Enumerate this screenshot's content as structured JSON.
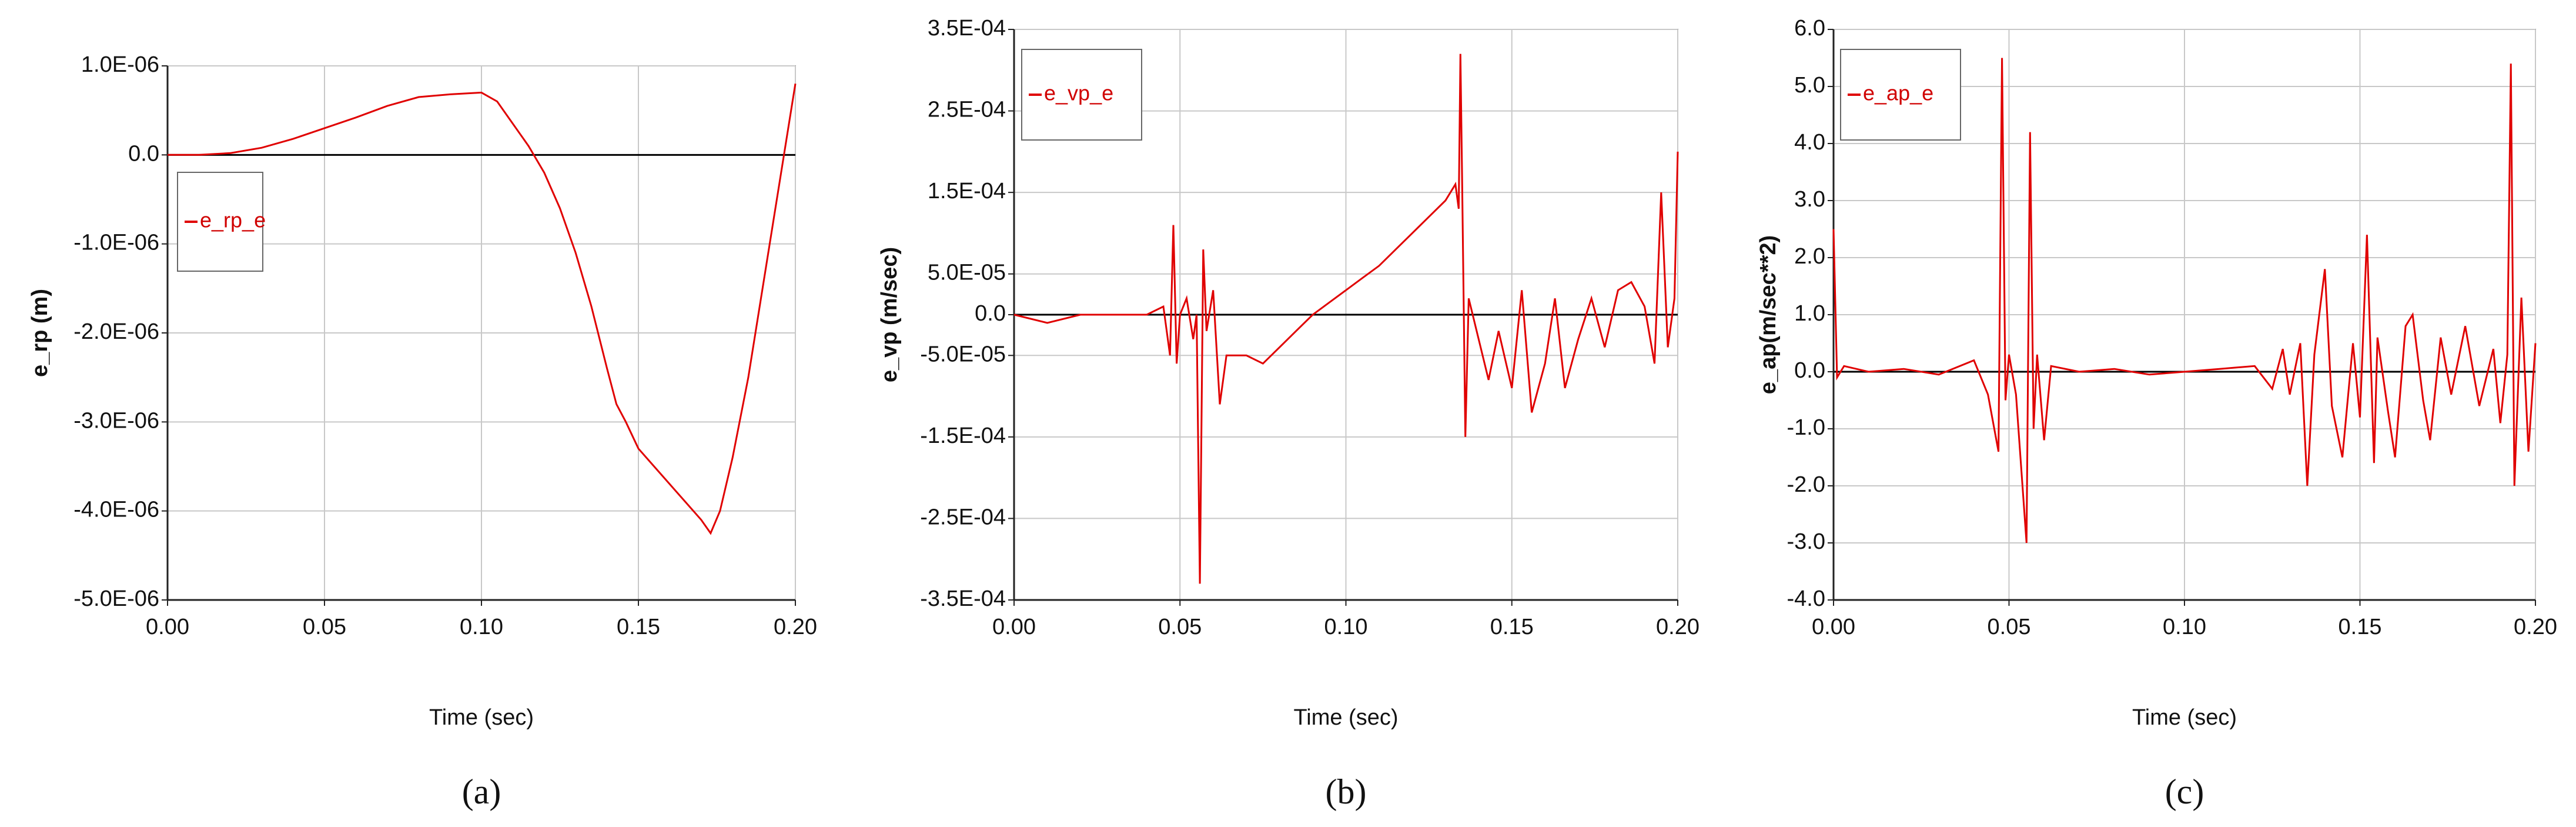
{
  "chart_data": [
    {
      "type": "line",
      "caption": "(a)",
      "x_label": "Time (sec)",
      "y_label": "e_rp (m)",
      "grid": true,
      "xlim": [
        0,
        0.2
      ],
      "ylim": [
        -5e-06,
        1e-06
      ],
      "xticks": [
        {
          "value": 0,
          "label": "0.00"
        },
        {
          "value": 0.05,
          "label": "0.05"
        },
        {
          "value": 0.1,
          "label": "0.10"
        },
        {
          "value": 0.15,
          "label": "0.15"
        },
        {
          "value": 0.2,
          "label": "0.20"
        }
      ],
      "yticks": [
        {
          "value": 1e-06,
          "label": "1.0E-06"
        },
        {
          "value": 0,
          "label": "0.0"
        },
        {
          "value": -1e-06,
          "label": "-1.0E-06"
        },
        {
          "value": -2e-06,
          "label": "-2.0E-06"
        },
        {
          "value": -3e-06,
          "label": "-3.0E-06"
        },
        {
          "value": -4e-06,
          "label": "-4.0E-06"
        },
        {
          "value": -5e-06,
          "label": "-5.0E-06"
        }
      ],
      "series": [
        {
          "name": "e_rp_e",
          "color": "#e00000",
          "x": [
            0,
            0.01,
            0.02,
            0.03,
            0.04,
            0.05,
            0.06,
            0.07,
            0.08,
            0.09,
            0.1,
            0.105,
            0.11,
            0.115,
            0.12,
            0.125,
            0.13,
            0.135,
            0.14,
            0.143,
            0.146,
            0.15,
            0.155,
            0.16,
            0.165,
            0.17,
            0.173,
            0.176,
            0.18,
            0.185,
            0.19,
            0.195,
            0.2
          ],
          "values": [
            0,
            0,
            2e-08,
            8e-08,
            1.8e-07,
            3e-07,
            4.2e-07,
            5.5e-07,
            6.5e-07,
            6.8e-07,
            7e-07,
            6e-07,
            3.5e-07,
            1e-07,
            -2e-07,
            -6e-07,
            -1.1e-06,
            -1.7e-06,
            -2.4e-06,
            -2.8e-06,
            -3e-06,
            -3.3e-06,
            -3.5e-06,
            -3.7e-06,
            -3.9e-06,
            -4.1e-06,
            -4.25e-06,
            -4e-06,
            -3.4e-06,
            -2.5e-06,
            -1.4e-06,
            -3e-07,
            8e-07
          ]
        }
      ]
    },
    {
      "type": "line",
      "caption": "(b)",
      "x_label": "Time (sec)",
      "y_label": "e_vp (m/sec)",
      "grid": true,
      "xlim": [
        0,
        0.2
      ],
      "ylim": [
        -0.00035,
        0.00035
      ],
      "xticks": [
        {
          "value": 0,
          "label": "0.00"
        },
        {
          "value": 0.05,
          "label": "0.05"
        },
        {
          "value": 0.1,
          "label": "0.10"
        },
        {
          "value": 0.15,
          "label": "0.15"
        },
        {
          "value": 0.2,
          "label": "0.20"
        }
      ],
      "yticks": [
        {
          "value": 0.00035,
          "label": "3.5E-04"
        },
        {
          "value": 0.00025,
          "label": "2.5E-04"
        },
        {
          "value": 0.00015,
          "label": "1.5E-04"
        },
        {
          "value": 5e-05,
          "label": "5.0E-05"
        },
        {
          "value": 0,
          "label": "0.0"
        },
        {
          "value": -5e-05,
          "label": "-5.0E-05"
        },
        {
          "value": -0.00015,
          "label": "-1.5E-04"
        },
        {
          "value": -0.00025,
          "label": "-2.5E-04"
        },
        {
          "value": -0.00035,
          "label": "-3.5E-04"
        }
      ],
      "series": [
        {
          "name": "e_vp_e",
          "color": "#e00000",
          "x": [
            0,
            0.01,
            0.02,
            0.03,
            0.04,
            0.045,
            0.047,
            0.048,
            0.049,
            0.05,
            0.052,
            0.054,
            0.055,
            0.056,
            0.057,
            0.058,
            0.06,
            0.062,
            0.064,
            0.07,
            0.075,
            0.08,
            0.085,
            0.09,
            0.095,
            0.1,
            0.105,
            0.11,
            0.115,
            0.12,
            0.125,
            0.13,
            0.133,
            0.134,
            0.1345,
            0.135,
            0.136,
            0.137,
            0.14,
            0.143,
            0.146,
            0.15,
            0.153,
            0.156,
            0.16,
            0.163,
            0.166,
            0.17,
            0.174,
            0.178,
            0.182,
            0.186,
            0.19,
            0.193,
            0.195,
            0.197,
            0.199,
            0.2
          ],
          "values": [
            0,
            -1e-05,
            0,
            0,
            0,
            1e-05,
            -5e-05,
            0.00011,
            -6e-05,
            0,
            2e-05,
            -3e-05,
            0,
            -0.00033,
            8e-05,
            -2e-05,
            3e-05,
            -0.00011,
            -5e-05,
            -5e-05,
            -6e-05,
            -4e-05,
            -2e-05,
            0,
            1.5e-05,
            3e-05,
            4.5e-05,
            6e-05,
            8e-05,
            0.0001,
            0.00012,
            0.00014,
            0.00016,
            0.00013,
            0.00032,
            0.00017,
            -0.00015,
            2e-05,
            -3e-05,
            -8e-05,
            -2e-05,
            -9e-05,
            3e-05,
            -0.00012,
            -6e-05,
            2e-05,
            -9e-05,
            -3e-05,
            2e-05,
            -4e-05,
            3e-05,
            4e-05,
            1e-05,
            -6e-05,
            0.00015,
            -4e-05,
            2e-05,
            0.0002
          ]
        }
      ]
    },
    {
      "type": "line",
      "caption": "(c)",
      "x_label": "Time (sec)",
      "y_label": "e_ap(m/sec**2)",
      "grid": true,
      "xlim": [
        0,
        0.2
      ],
      "ylim": [
        -4,
        6
      ],
      "xticks": [
        {
          "value": 0,
          "label": "0.00"
        },
        {
          "value": 0.05,
          "label": "0.05"
        },
        {
          "value": 0.1,
          "label": "0.10"
        },
        {
          "value": 0.15,
          "label": "0.15"
        },
        {
          "value": 0.2,
          "label": "0.20"
        }
      ],
      "yticks": [
        {
          "value": 6,
          "label": "6.0"
        },
        {
          "value": 5,
          "label": "5.0"
        },
        {
          "value": 4,
          "label": "4.0"
        },
        {
          "value": 3,
          "label": "3.0"
        },
        {
          "value": 2,
          "label": "2.0"
        },
        {
          "value": 1,
          "label": "1.0"
        },
        {
          "value": 0,
          "label": "0.0"
        },
        {
          "value": -1,
          "label": "-1.0"
        },
        {
          "value": -2,
          "label": "-2.0"
        },
        {
          "value": -3,
          "label": "-3.0"
        },
        {
          "value": -4,
          "label": "-4.0"
        }
      ],
      "series": [
        {
          "name": "e_ap_e",
          "color": "#e00000",
          "x": [
            0,
            0.001,
            0.003,
            0.01,
            0.02,
            0.03,
            0.04,
            0.044,
            0.047,
            0.048,
            0.049,
            0.05,
            0.052,
            0.055,
            0.056,
            0.057,
            0.058,
            0.06,
            0.062,
            0.07,
            0.08,
            0.09,
            0.1,
            0.11,
            0.12,
            0.125,
            0.128,
            0.13,
            0.133,
            0.135,
            0.137,
            0.14,
            0.142,
            0.145,
            0.148,
            0.15,
            0.152,
            0.154,
            0.155,
            0.158,
            0.16,
            0.163,
            0.165,
            0.168,
            0.17,
            0.173,
            0.176,
            0.18,
            0.184,
            0.188,
            0.19,
            0.192,
            0.193,
            0.194,
            0.196,
            0.198,
            0.2
          ],
          "values": [
            2.5,
            -0.1,
            0.1,
            0,
            0.05,
            -0.05,
            0.2,
            -0.4,
            -1.4,
            5.5,
            -0.5,
            0.3,
            -0.4,
            -3.0,
            4.2,
            -1.0,
            0.3,
            -1.2,
            0.1,
            0,
            0.05,
            -0.05,
            0,
            0.05,
            0.1,
            -0.3,
            0.4,
            -0.4,
            0.5,
            -2.0,
            0.3,
            1.8,
            -0.6,
            -1.5,
            0.5,
            -0.8,
            2.4,
            -1.6,
            0.6,
            -0.7,
            -1.5,
            0.8,
            1.0,
            -0.5,
            -1.2,
            0.6,
            -0.4,
            0.8,
            -0.6,
            0.4,
            -0.9,
            0.3,
            5.4,
            -2.0,
            1.3,
            -1.4,
            0.5
          ]
        }
      ]
    }
  ]
}
